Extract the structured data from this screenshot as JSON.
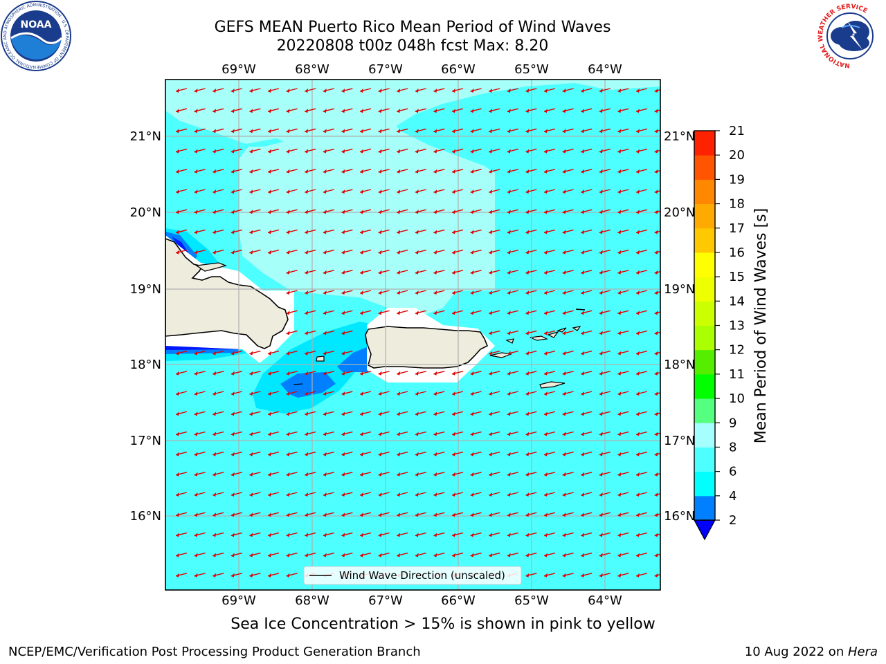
{
  "header": {
    "title_line1": "GEFS MEAN Puerto Rico Mean Period of Wind Waves",
    "title_line2": "20220808 t00z 048h fcst   Max: 8.20"
  },
  "logos": {
    "noaa_text": "NOAA",
    "noaa_ring_text": "NATIONAL OCEANIC AND ATMOSPHERIC ADMINISTRATION · U.S. DEPARTMENT OF COMMERCE",
    "nws_ring_text": "NATIONAL WEATHER SERVICE"
  },
  "map": {
    "lon_labels": [
      "69°W",
      "68°W",
      "67°W",
      "66°W",
      "65°W",
      "64°W"
    ],
    "lat_labels": [
      "21°N",
      "20°N",
      "19°N",
      "18°N",
      "17°N",
      "16°N"
    ],
    "legend_label": "Wind Wave Direction (unscaled)",
    "colors": {
      "ocean_main": "#4dffff",
      "ocean_light": "#a6fff8",
      "ocean_mid": "#00e8ff",
      "ocean_deep": "#0080ff",
      "ocean_deepest": "#0018ff",
      "land": "#eeecdc",
      "coast": "#000000",
      "arrow": "#e00000",
      "grid": "#b0b0b0"
    }
  },
  "colorbar": {
    "label": "Mean Period of Wind Waves [s]",
    "ticks": [
      "2",
      "4",
      "6",
      "8",
      "9",
      "10",
      "11",
      "12",
      "13",
      "14",
      "15",
      "16",
      "17",
      "18",
      "19",
      "20",
      "21"
    ],
    "colors": [
      "#0000ff",
      "#0080ff",
      "#00ffff",
      "#4dffff",
      "#a6ffff",
      "#55ff80",
      "#00ff00",
      "#55ee00",
      "#aaff00",
      "#ccff00",
      "#eeff00",
      "#ffff00",
      "#ffc800",
      "#ffaa00",
      "#ff8800",
      "#ff5500",
      "#ff2200",
      "#ff0000"
    ]
  },
  "footer": {
    "note": "Sea Ice Concentration > 15% is shown in pink to yellow",
    "left": "NCEP/EMC/Verification Post Processing Product Generation Branch",
    "date": "10 Aug 2022 on ",
    "host": "Hera"
  }
}
